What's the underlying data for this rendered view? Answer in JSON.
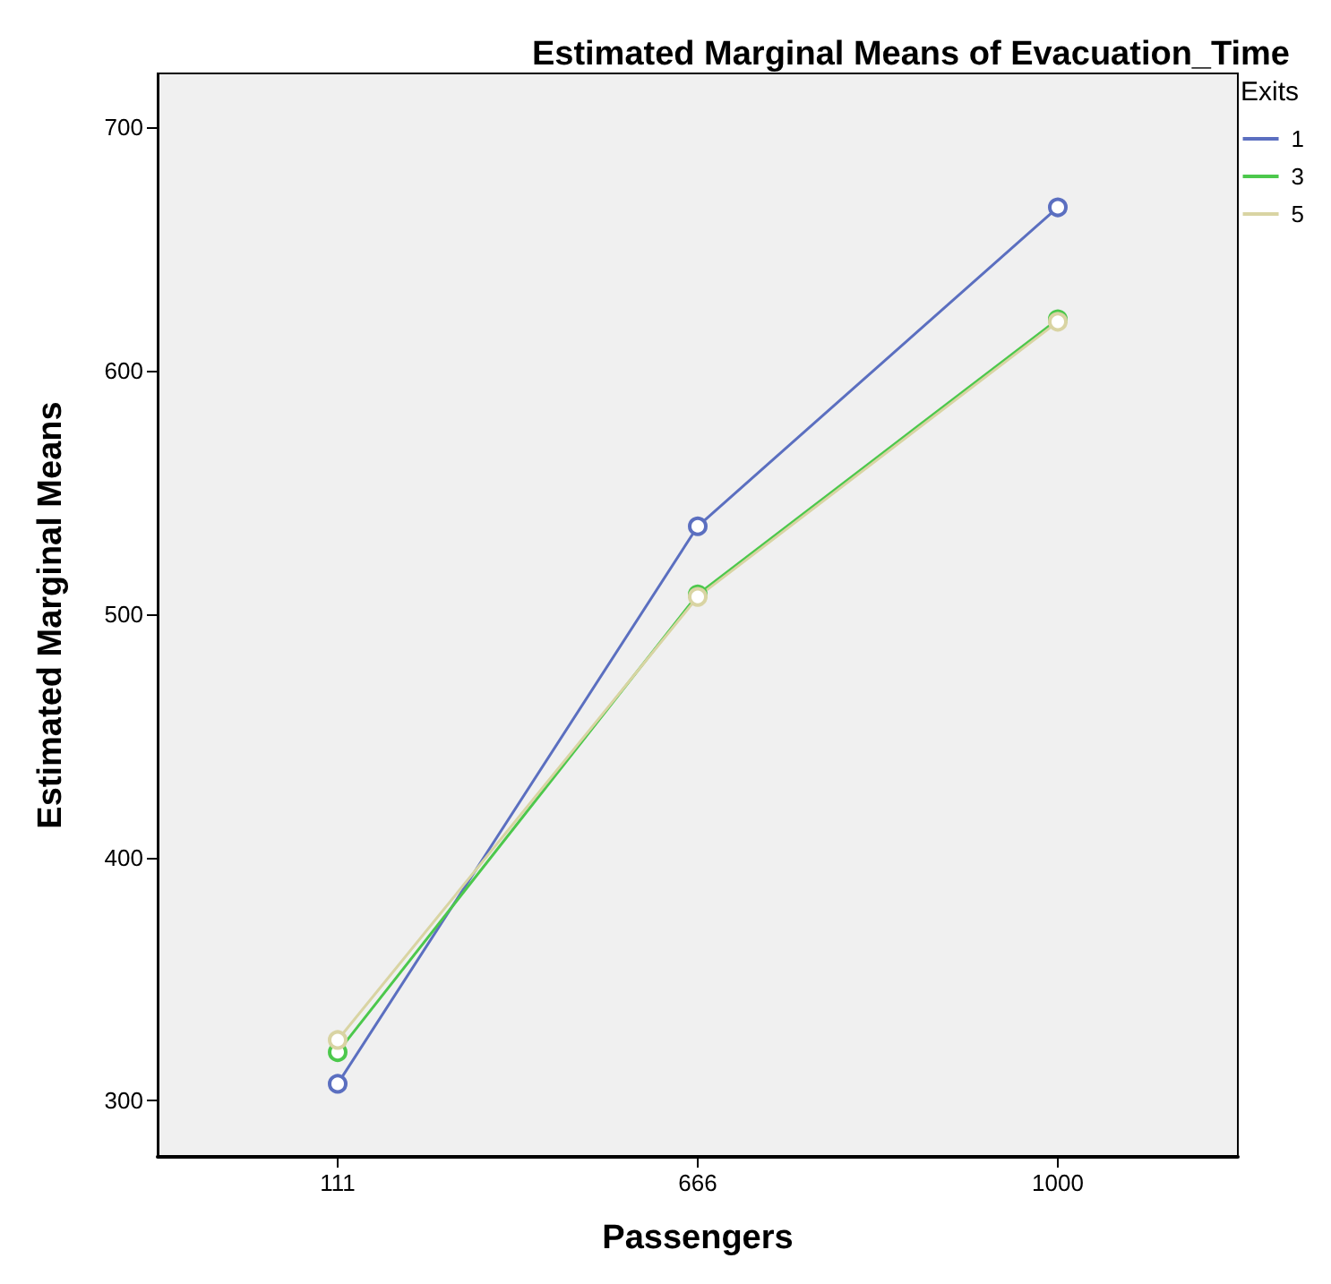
{
  "chart_data": {
    "type": "line",
    "title": "Estimated Marginal Means of Evacuation_Time",
    "xlabel": "Passengers",
    "ylabel": "Estimated Marginal Means",
    "legend_title": "Exits",
    "categories": [
      "111",
      "666",
      "1000"
    ],
    "series": [
      {
        "name": "1",
        "color": "#5b6fc0",
        "values": [
          307,
          536,
          667
        ]
      },
      {
        "name": "3",
        "color": "#4cc84c",
        "values": [
          320,
          508,
          621
        ]
      },
      {
        "name": "5",
        "color": "#d9d4a3",
        "values": [
          325,
          507,
          620
        ]
      }
    ],
    "ylim": [
      277,
      722
    ],
    "yticks": [
      300,
      400,
      500,
      600,
      700
    ],
    "grid": false,
    "legend": "top right",
    "marker": "circle",
    "line_style": "solid"
  }
}
